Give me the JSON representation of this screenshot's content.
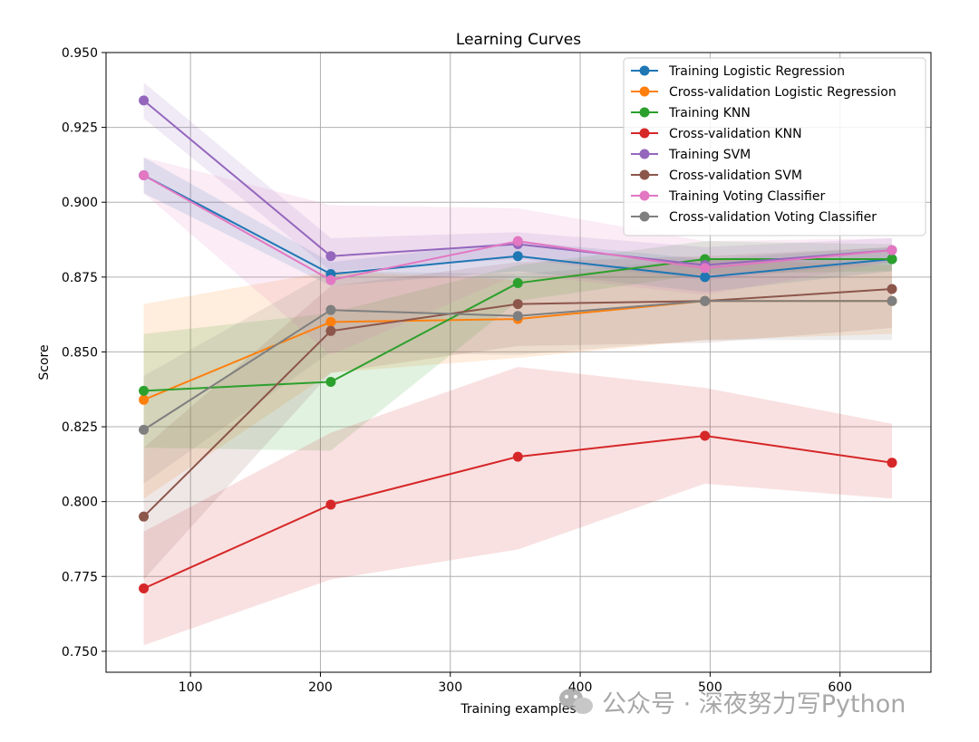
{
  "chart_data": {
    "type": "line",
    "title": "Learning Curves",
    "xlabel": "Training examples",
    "ylabel": "Score",
    "xlim": [
      35,
      670
    ],
    "ylim": [
      0.743,
      0.95
    ],
    "grid": true,
    "legend_position": "top-right",
    "x": [
      64,
      208,
      352,
      496,
      640
    ],
    "xticks": [
      {
        "value": 100,
        "label": "100"
      },
      {
        "value": 200,
        "label": "200"
      },
      {
        "value": 300,
        "label": "300"
      },
      {
        "value": 400,
        "label": "400"
      },
      {
        "value": 500,
        "label": "500"
      },
      {
        "value": 600,
        "label": "600"
      }
    ],
    "yticks": [
      {
        "value": 0.75,
        "label": "0.750"
      },
      {
        "value": 0.775,
        "label": "0.775"
      },
      {
        "value": 0.8,
        "label": "0.800"
      },
      {
        "value": 0.825,
        "label": "0.825"
      },
      {
        "value": 0.85,
        "label": "0.850"
      },
      {
        "value": 0.875,
        "label": "0.875"
      },
      {
        "value": 0.9,
        "label": "0.900"
      },
      {
        "value": 0.925,
        "label": "0.925"
      },
      {
        "value": 0.95,
        "label": "0.950"
      }
    ],
    "series": [
      {
        "name": "Training Logistic Regression",
        "color": "#1f77b4",
        "values": [
          0.909,
          0.876,
          0.882,
          0.875,
          0.881
        ],
        "lower": [
          0.903,
          0.872,
          0.877,
          0.87,
          0.877
        ],
        "upper": [
          0.915,
          0.88,
          0.887,
          0.881,
          0.885
        ]
      },
      {
        "name": "Cross-validation Logistic Regression",
        "color": "#ff7f0e",
        "values": [
          0.834,
          0.86,
          0.861,
          0.867,
          0.867
        ],
        "lower": [
          0.801,
          0.843,
          0.848,
          0.854,
          0.856
        ],
        "upper": [
          0.866,
          0.877,
          0.874,
          0.881,
          0.879
        ]
      },
      {
        "name": "Training KNN",
        "color": "#2ca02c",
        "values": [
          0.837,
          0.84,
          0.873,
          0.881,
          0.881
        ],
        "lower": [
          0.818,
          0.817,
          0.867,
          0.876,
          0.877
        ],
        "upper": [
          0.856,
          0.863,
          0.879,
          0.887,
          0.886
        ]
      },
      {
        "name": "Cross-validation KNN",
        "color": "#d62728",
        "values": [
          0.771,
          0.799,
          0.815,
          0.822,
          0.813
        ],
        "lower": [
          0.752,
          0.774,
          0.784,
          0.806,
          0.801
        ],
        "upper": [
          0.79,
          0.823,
          0.845,
          0.838,
          0.826
        ]
      },
      {
        "name": "Training SVM",
        "color": "#9467bd",
        "values": [
          0.934,
          0.882,
          0.886,
          0.879,
          0.884
        ],
        "lower": [
          0.928,
          0.877,
          0.881,
          0.874,
          0.88
        ],
        "upper": [
          0.94,
          0.888,
          0.89,
          0.885,
          0.888
        ]
      },
      {
        "name": "Cross-validation SVM",
        "color": "#8c564b",
        "values": [
          0.795,
          0.857,
          0.866,
          0.867,
          0.871
        ],
        "lower": [
          0.774,
          0.843,
          0.852,
          0.853,
          0.858
        ],
        "upper": [
          0.818,
          0.872,
          0.88,
          0.882,
          0.885
        ]
      },
      {
        "name": "Training Voting Classifier",
        "color": "#e377c2",
        "values": [
          0.909,
          0.874,
          0.887,
          0.878,
          0.884
        ],
        "lower": [
          0.903,
          0.849,
          0.876,
          0.869,
          0.88
        ],
        "upper": [
          0.915,
          0.899,
          0.898,
          0.887,
          0.888
        ]
      },
      {
        "name": "Cross-validation Voting Classifier",
        "color": "#7f7f7f",
        "values": [
          0.824,
          0.864,
          0.862,
          0.867,
          0.867
        ],
        "lower": [
          0.806,
          0.85,
          0.849,
          0.854,
          0.854
        ],
        "upper": [
          0.842,
          0.877,
          0.876,
          0.881,
          0.881
        ]
      }
    ]
  },
  "watermark": {
    "text": "公众号 · 深夜努力写Python"
  }
}
